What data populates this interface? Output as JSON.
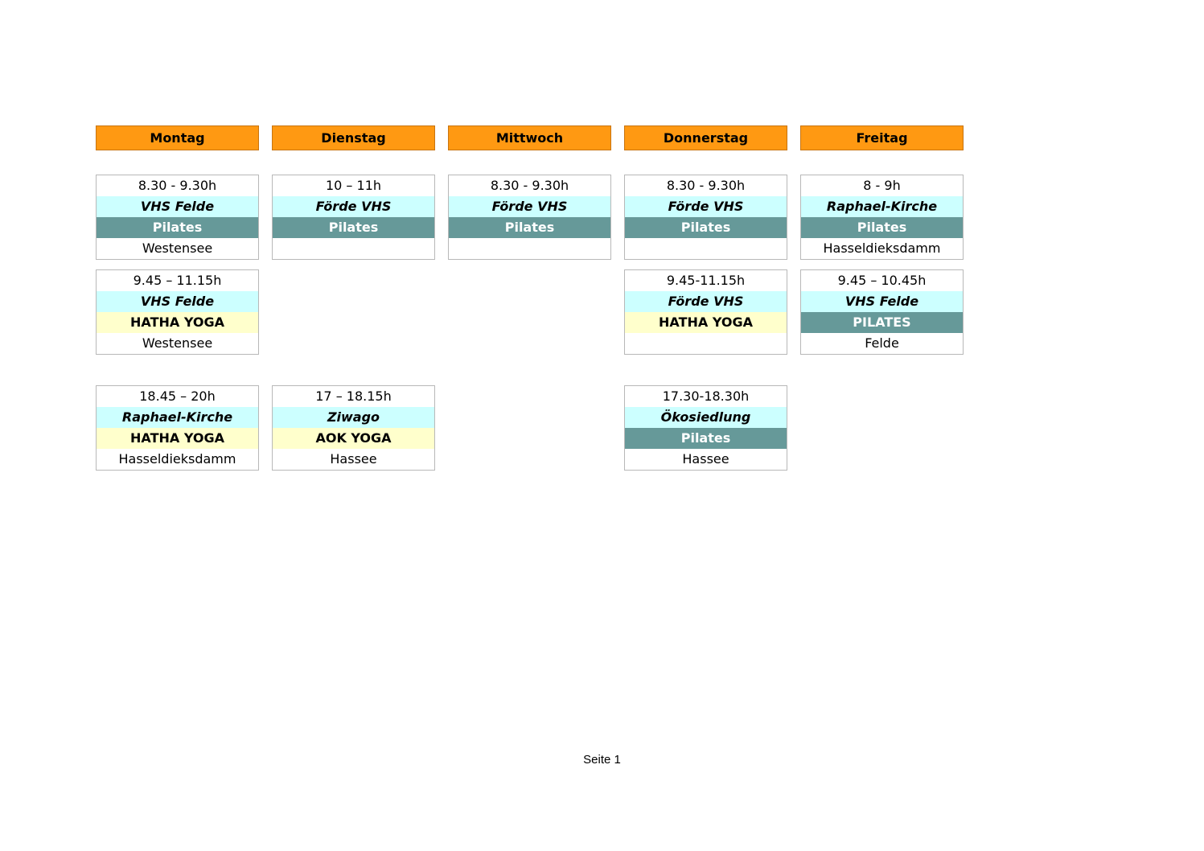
{
  "days": [
    "Montag",
    "Dienstag",
    "Mittwoch",
    "Donnerstag",
    "Freitag"
  ],
  "schedule": [
    [
      {
        "time": "8.30 - 9.30h",
        "place": "VHS Felde",
        "course": "Pilates",
        "course_color": "#669999",
        "course_text_color": "#ffffff",
        "location": "Westensee"
      },
      {
        "time": "10 – 11h",
        "place": "Förde VHS",
        "course": "Pilates",
        "course_color": "#669999",
        "course_text_color": "#ffffff"
      },
      {
        "time": "8.30 - 9.30h",
        "place": "Förde VHS",
        "course": "Pilates",
        "course_color": "#669999",
        "course_text_color": "#ffffff"
      },
      {
        "time": "8.30 - 9.30h",
        "place": "Förde VHS",
        "course": "Pilates",
        "course_color": "#669999",
        "course_text_color": "#ffffff"
      },
      {
        "time": "8 - 9h",
        "place": "Raphael-Kirche",
        "course": "Pilates",
        "course_color": "#669999",
        "course_text_color": "#ffffff",
        "location": "Hasseldieksdamm"
      }
    ],
    [
      {
        "time": "9.45 – 11.15h",
        "place": "VHS Felde",
        "course": "HATHA YOGA",
        "course_color": "#ffffcc",
        "course_text_color": "#000000",
        "location": "Westensee"
      },
      null,
      null,
      {
        "time": "9.45-11.15h",
        "place": "Förde VHS",
        "course": "HATHA YOGA",
        "course_color": "#ffffcc",
        "course_text_color": "#000000"
      },
      {
        "time": "9.45 – 10.45h",
        "place": "VHS Felde",
        "course": "PILATES",
        "course_color": "#669999",
        "course_text_color": "#ffffff",
        "location": "Felde"
      }
    ],
    [
      {
        "time": "18.45 – 20h",
        "place": "Raphael-Kirche",
        "course": "HATHA YOGA",
        "course_color": "#ffffcc",
        "course_text_color": "#000000",
        "location": "Hasseldieksdamm"
      },
      {
        "time": "17 – 18.15h",
        "place": "Ziwago",
        "course": "AOK YOGA",
        "course_color": "#ffffcc",
        "course_text_color": "#000000",
        "location": "Hassee"
      },
      null,
      {
        "time": "17.30-18.30h",
        "place": "Ökosiedlung",
        "course": "Pilates",
        "course_color": "#669999",
        "course_text_color": "#ffffff",
        "location": "Hassee"
      },
      null
    ]
  ],
  "footer": "Seite 1"
}
